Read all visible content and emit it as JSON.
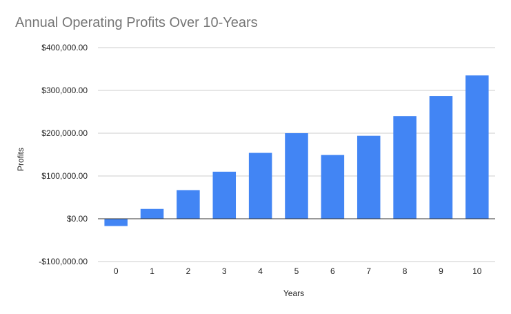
{
  "chart_data": {
    "type": "bar",
    "title": "Annual Operating Profits Over 10-Years",
    "xlabel": "Years",
    "ylabel": "Profits",
    "categories": [
      "0",
      "1",
      "2",
      "3",
      "4",
      "5",
      "6",
      "7",
      "8",
      "9",
      "10"
    ],
    "series": [
      {
        "values": [
          -17000,
          23000,
          67000,
          110000,
          154000,
          200000,
          149000,
          194000,
          240000,
          287000,
          335000
        ],
        "color": "#4285f4"
      }
    ],
    "ylim": [
      -100000,
      400000
    ],
    "yticks": [
      -100000,
      0,
      100000,
      200000,
      300000,
      400000
    ],
    "ytick_labels": [
      "-$100,000.00",
      "$0.00",
      "$100,000.00",
      "$200,000.00",
      "$300,000.00",
      "$400,000.00"
    ],
    "grid": true,
    "legend": "none"
  }
}
